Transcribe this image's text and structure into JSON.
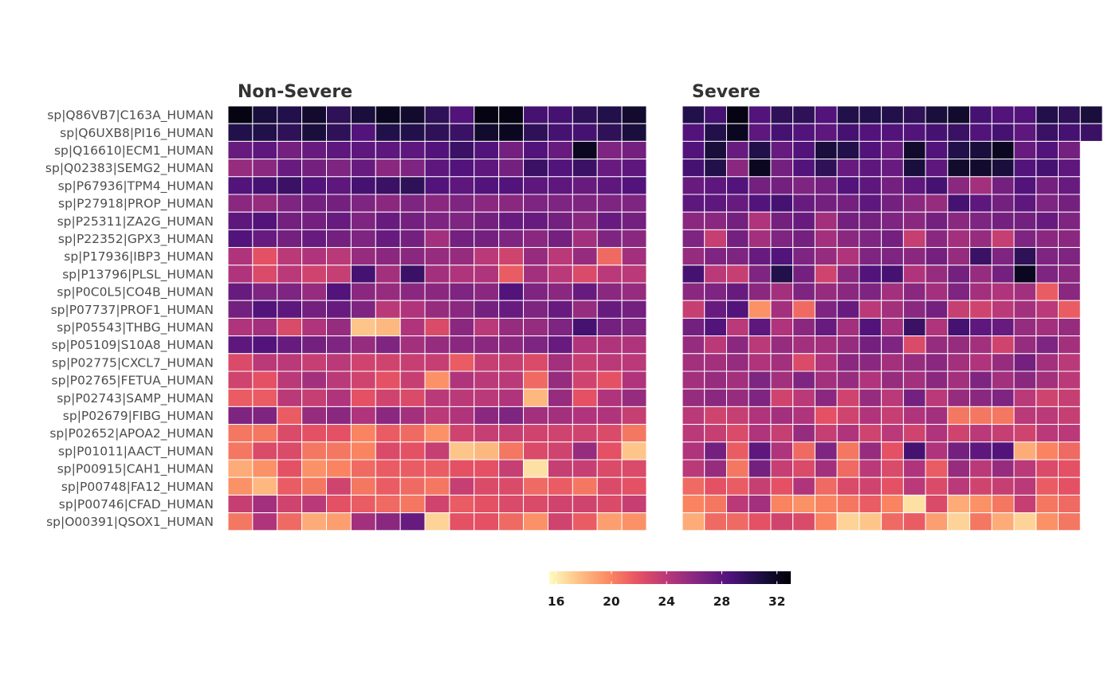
{
  "chart_data": {
    "type": "heatmap",
    "title": "",
    "xlabel": "",
    "ylabel": "",
    "rows": [
      "sp|Q86VB7|C163A_HUMAN",
      "sp|Q6UXB8|PI16_HUMAN",
      "sp|Q16610|ECM1_HUMAN",
      "sp|Q02383|SEMG2_HUMAN",
      "sp|P67936|TPM4_HUMAN",
      "sp|P27918|PROP_HUMAN",
      "sp|P25311|ZA2G_HUMAN",
      "sp|P22352|GPX3_HUMAN",
      "sp|P17936|IBP3_HUMAN",
      "sp|P13796|PLSL_HUMAN",
      "sp|P0C0L5|CO4B_HUMAN",
      "sp|P07737|PROF1_HUMAN",
      "sp|P05543|THBG_HUMAN",
      "sp|P05109|S10A8_HUMAN",
      "sp|P02775|CXCL7_HUMAN",
      "sp|P02765|FETUA_HUMAN",
      "sp|P02743|SAMP_HUMAN",
      "sp|P02679|FIBG_HUMAN",
      "sp|P02652|APOA2_HUMAN",
      "sp|P01011|AACT_HUMAN",
      "sp|P00915|CAH1_HUMAN",
      "sp|P00748|FA12_HUMAN",
      "sp|P00746|CFAD_HUMAN",
      "sp|O00391|QSOX1_HUMAN"
    ],
    "facets": [
      {
        "name": "Non-Severe",
        "values": [
          [
            32.5,
            31,
            30.5,
            31.5,
            30,
            31,
            32,
            31.5,
            30,
            28.5,
            32.5,
            32.5,
            29,
            29,
            30,
            30.5,
            31.5
          ],
          [
            30.5,
            30.5,
            30,
            31,
            30,
            28.5,
            30.5,
            30.5,
            30,
            29.5,
            31.5,
            32,
            30,
            29,
            29,
            30,
            31
          ],
          [
            27.5,
            28,
            27,
            27.5,
            28,
            28,
            28,
            28,
            28.5,
            29.5,
            28.5,
            27,
            28.5,
            27.5,
            32,
            26.5,
            27
          ],
          [
            25.5,
            26,
            27.5,
            27,
            26.5,
            27.5,
            26,
            26.5,
            28,
            28.5,
            28,
            27,
            29.5,
            28.5,
            29.5,
            27.5,
            28
          ],
          [
            28.5,
            29,
            29.5,
            28.5,
            28,
            29,
            29.5,
            30,
            28.5,
            28,
            28.5,
            28.5,
            28,
            28,
            27.5,
            28,
            28.5
          ],
          [
            26,
            25.5,
            26.5,
            27,
            27,
            26.5,
            26,
            26.5,
            26,
            26.5,
            26,
            26,
            26.5,
            26.5,
            26.5,
            26.5,
            26.5
          ],
          [
            28,
            28.5,
            27,
            27,
            27.5,
            26.5,
            27.5,
            27,
            26.5,
            26.5,
            27,
            27.5,
            27.5,
            27,
            26,
            27.5,
            27
          ],
          [
            28.5,
            27.5,
            27,
            27.5,
            27,
            26.5,
            27.5,
            27,
            25,
            27,
            27,
            26.5,
            26,
            27,
            25,
            26.5,
            26
          ],
          [
            24.5,
            22,
            24,
            24.5,
            24,
            25.5,
            26,
            26,
            25.5,
            25.5,
            24,
            23,
            25.5,
            24,
            25.5,
            21,
            25
          ],
          [
            24.5,
            22.5,
            24,
            23,
            23.5,
            29,
            25,
            29.5,
            25,
            24.5,
            24.5,
            21.5,
            25,
            24,
            22.5,
            24,
            24
          ],
          [
            27.5,
            26.5,
            26.5,
            25.5,
            28.5,
            26,
            25.5,
            26,
            26,
            26.5,
            26,
            28.5,
            26.5,
            26,
            27.5,
            26,
            25.5
          ],
          [
            27,
            28.5,
            28,
            27,
            27.5,
            26.5,
            24,
            24.5,
            25.5,
            26,
            27,
            27.5,
            26.5,
            27.5,
            25.5,
            27.5,
            27
          ],
          [
            24.5,
            25,
            22.5,
            24.5,
            25.5,
            17.5,
            18,
            24.5,
            22.5,
            26,
            24,
            25.5,
            25.5,
            26.5,
            29,
            27,
            26.5
          ],
          [
            28,
            28.5,
            27.5,
            27,
            26.5,
            25.5,
            26.5,
            25,
            25.5,
            26,
            26,
            26,
            26.5,
            27.5,
            24.5,
            24.5,
            24.5
          ],
          [
            22.5,
            24,
            24,
            23.5,
            24,
            23,
            23,
            23.5,
            23.5,
            21.5,
            23.5,
            23.5,
            22.5,
            25,
            23.5,
            24,
            24
          ],
          [
            23,
            22,
            24,
            25,
            24,
            23,
            22,
            23.5,
            19.5,
            24.5,
            24,
            24,
            21,
            25.5,
            23,
            22,
            24.5
          ],
          [
            21.5,
            21.5,
            24,
            23.5,
            24.5,
            22,
            23,
            22.5,
            24,
            24,
            24,
            24.5,
            18,
            25.5,
            22,
            24.5,
            25.5
          ],
          [
            26.5,
            26.5,
            21.5,
            25.5,
            26,
            24.5,
            26,
            25,
            24,
            24.5,
            26,
            26.5,
            25,
            25,
            24.5,
            24.5,
            23.5
          ],
          [
            20.5,
            20.5,
            22.5,
            22,
            22,
            20,
            21.5,
            21,
            19.5,
            23,
            23.5,
            23.5,
            23,
            23,
            23,
            22.5,
            20.5
          ],
          [
            20.5,
            22.5,
            22.5,
            20.5,
            20.5,
            20,
            22.5,
            22,
            23.5,
            17.5,
            18,
            20.5,
            22.5,
            23,
            25.5,
            22,
            17.5
          ],
          [
            18.5,
            19.5,
            22,
            19.5,
            20,
            21,
            21.5,
            21.5,
            21.5,
            22,
            22,
            23.5,
            16.5,
            23.5,
            23.5,
            22.5,
            22.5
          ],
          [
            19.5,
            18,
            21.5,
            20.5,
            23,
            20.5,
            21.5,
            21,
            20.5,
            23.5,
            22.5,
            22.5,
            21,
            21.5,
            20.5,
            22.5,
            22
          ],
          [
            23.5,
            25,
            23,
            24,
            22,
            21.5,
            21,
            20.5,
            23,
            21.5,
            22,
            22.5,
            22.5,
            23,
            23,
            22.5,
            23.5
          ],
          [
            20.5,
            24.5,
            21,
            18.5,
            19,
            25,
            26,
            27.5,
            17,
            22,
            22,
            21,
            19.5,
            23,
            21.5,
            19,
            19.5
          ]
        ]
      },
      {
        "name": "Severe",
        "values": [
          [
            30.5,
            29,
            32.5,
            28.5,
            30,
            30,
            28.5,
            30.5,
            30.5,
            30.5,
            30,
            31,
            31.5,
            29,
            28.5,
            28.5,
            30.5,
            30,
            31
          ],
          [
            28.5,
            30.5,
            32,
            28,
            29,
            28.5,
            28,
            29,
            28.5,
            28.5,
            28.5,
            29,
            29.5,
            28.5,
            29,
            28,
            29.5,
            29,
            29.5
          ],
          [
            28.5,
            31,
            27.5,
            30.5,
            27.5,
            28.5,
            31,
            30.5,
            28.5,
            27.5,
            31.5,
            28.5,
            30.5,
            31,
            32,
            27.5,
            28.5,
            27
          ],
          [
            29,
            30.5,
            26,
            32,
            27,
            28.5,
            30,
            27.5,
            28,
            27.5,
            31,
            28,
            31.5,
            31.5,
            31,
            28.5,
            29,
            28
          ],
          [
            27.5,
            28,
            28.5,
            27,
            27,
            26.5,
            27,
            28.5,
            28,
            27,
            28,
            29,
            26,
            25,
            27,
            28.5,
            27,
            27.5
          ],
          [
            28,
            28,
            27.5,
            28.5,
            29,
            27.5,
            27,
            27,
            28,
            27,
            26,
            25.5,
            29,
            28,
            27,
            28,
            26.5,
            27
          ],
          [
            26,
            26,
            27,
            24.5,
            27,
            27.5,
            25,
            27,
            27,
            26.5,
            26,
            27,
            26,
            26.5,
            27,
            27,
            27.5,
            26.5
          ],
          [
            26.5,
            23.5,
            27,
            25,
            26.5,
            27,
            25,
            26,
            26.5,
            27,
            23.5,
            26,
            25,
            25.5,
            23.5,
            26.5,
            26,
            26
          ],
          [
            25.5,
            26.5,
            26.5,
            27.5,
            28.5,
            26.5,
            25.5,
            24.5,
            26.5,
            26.5,
            26,
            27,
            25.5,
            29.5,
            26.5,
            30,
            26.5,
            26.5
          ],
          [
            29,
            24,
            23.5,
            26.5,
            30.5,
            27,
            23,
            26,
            28.5,
            29,
            24.5,
            25.5,
            27,
            25.5,
            27,
            32,
            26.5,
            26
          ],
          [
            26,
            26.5,
            27.5,
            26,
            25,
            26.5,
            25.5,
            26,
            26.5,
            25,
            26,
            25,
            26.5,
            25,
            24.5,
            25,
            21.5,
            26
          ],
          [
            23.5,
            27.5,
            28.5,
            19.5,
            25,
            21,
            26.5,
            27.5,
            24,
            25,
            26,
            27,
            23.5,
            23,
            24,
            25,
            24,
            21.5
          ],
          [
            27,
            28.5,
            24,
            28,
            24.5,
            26,
            27.5,
            25,
            28.5,
            25,
            29.5,
            24.5,
            29,
            28,
            27.5,
            25.5,
            25,
            25.5
          ],
          [
            25.5,
            24,
            26,
            24,
            25.5,
            25,
            25,
            25.5,
            27,
            26.5,
            22.5,
            25.5,
            25.5,
            25,
            23,
            25.5,
            26.5,
            25
          ],
          [
            25,
            25,
            25.5,
            24.5,
            25,
            22.5,
            24.5,
            26,
            26,
            25,
            25.5,
            26,
            25,
            24.5,
            25.5,
            27,
            25,
            24
          ],
          [
            25,
            25.5,
            25,
            26.5,
            25,
            26.5,
            25,
            25.5,
            24.5,
            25.5,
            25,
            26,
            25,
            26.5,
            25,
            26,
            25,
            24
          ],
          [
            25.5,
            26,
            25.5,
            26.5,
            23,
            24,
            26,
            23,
            25.5,
            24,
            27,
            24,
            25.5,
            26,
            26.5,
            24,
            23,
            23.5
          ],
          [
            24,
            23,
            23.5,
            24.5,
            25,
            24.5,
            22,
            23,
            24.5,
            23.5,
            24.5,
            25,
            20.5,
            20.5,
            20.5,
            24,
            24,
            23.5
          ],
          [
            24,
            23.5,
            22.5,
            24.5,
            23.5,
            25.5,
            23.5,
            24.5,
            23,
            24,
            23,
            24.5,
            23,
            24,
            23.5,
            23,
            24,
            24
          ],
          [
            24.5,
            27,
            21.5,
            28,
            24.5,
            21,
            26.5,
            20.5,
            25.5,
            22,
            29,
            24.5,
            27,
            28,
            28.5,
            18.5,
            20,
            21
          ],
          [
            24,
            25.5,
            20.5,
            27,
            23.5,
            22.5,
            25,
            21,
            24,
            22.5,
            24.5,
            21.5,
            25.5,
            24,
            25.5,
            24,
            22.5,
            22
          ],
          [
            21,
            22,
            21.5,
            23.5,
            22,
            24.5,
            21,
            22.5,
            23,
            22,
            24,
            22.5,
            24,
            23,
            23.5,
            24,
            21.5,
            22
          ],
          [
            20,
            20.5,
            24,
            25,
            20,
            19.5,
            20,
            20.5,
            21.5,
            20,
            16.5,
            22.5,
            18.5,
            19.5,
            20.5,
            23.5,
            20.5,
            21
          ],
          [
            18.5,
            21,
            21,
            22,
            23,
            22.5,
            20,
            17,
            17.5,
            21,
            21.5,
            19,
            17,
            20.5,
            18.5,
            17,
            19.5,
            20.5
          ]
        ]
      }
    ],
    "colorscale": {
      "palette": "magma-reversed",
      "min": 15.5,
      "max": 33,
      "ticks": [
        16,
        20,
        24,
        28,
        32
      ],
      "tick_labels": [
        "16",
        "20",
        "24",
        "28",
        "32"
      ],
      "legend_position": "bottom"
    },
    "grid": false
  }
}
